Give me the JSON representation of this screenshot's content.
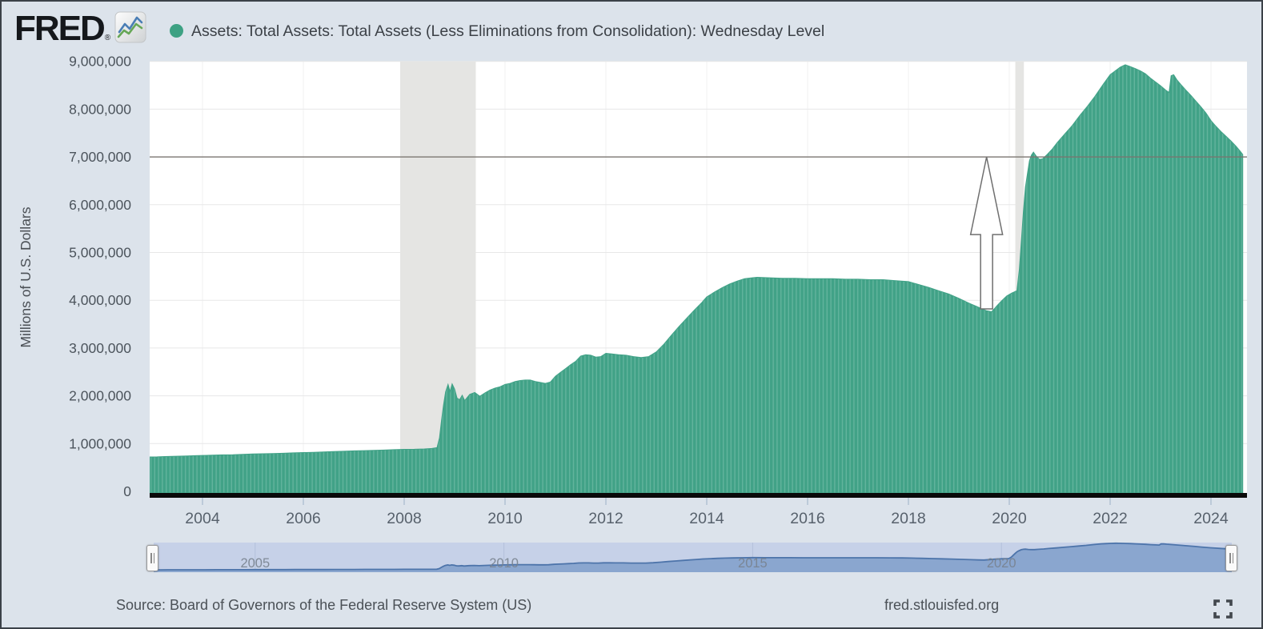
{
  "header": {
    "logo_text": "FRED",
    "logo_registered": "®",
    "legend_dot_color": "#3da183",
    "series_title": "Assets: Total Assets: Total Assets (Less Eliminations from Consolidation): Wednesday Level"
  },
  "icons": {
    "fred_logo_chart": "sparkline-chart",
    "legend_dot": "filled-circle",
    "slider_handles": "grip-bars",
    "fullscreen": "expand-corners"
  },
  "footer": {
    "source": "Source: Board of Governors of the Federal Reserve System (US)",
    "site": "fred.stlouisfed.org"
  },
  "slider": {
    "labels": [
      {
        "year": 2005,
        "label": "2005"
      },
      {
        "year": 2010,
        "label": "2010"
      },
      {
        "year": 2015,
        "label": "2015"
      },
      {
        "year": 2020,
        "label": "2020"
      }
    ]
  },
  "chart_data": {
    "type": "area",
    "title": "Assets: Total Assets: Total Assets (Less Eliminations from Consolidation): Wednesday Level",
    "xlabel": "",
    "ylabel": "Millions of U.S. Dollars",
    "legend_position": "top",
    "grid": true,
    "xlim": [
      2002.96,
      2024.63
    ],
    "ylim": [
      0,
      9000000
    ],
    "y_ticks": [
      {
        "value": 0,
        "label": "0"
      },
      {
        "value": 1000000,
        "label": "1,000,000"
      },
      {
        "value": 2000000,
        "label": "2,000,000"
      },
      {
        "value": 3000000,
        "label": "3,000,000"
      },
      {
        "value": 4000000,
        "label": "4,000,000"
      },
      {
        "value": 5000000,
        "label": "5,000,000"
      },
      {
        "value": 6000000,
        "label": "6,000,000"
      },
      {
        "value": 7000000,
        "label": "7,000,000"
      },
      {
        "value": 8000000,
        "label": "8,000,000"
      },
      {
        "value": 9000000,
        "label": "9,000,000"
      }
    ],
    "x_ticks": [
      {
        "year": 2004,
        "label": "2004"
      },
      {
        "year": 2006,
        "label": "2006"
      },
      {
        "year": 2008,
        "label": "2008"
      },
      {
        "year": 2010,
        "label": "2010"
      },
      {
        "year": 2012,
        "label": "2012"
      },
      {
        "year": 2014,
        "label": "2014"
      },
      {
        "year": 2016,
        "label": "2016"
      },
      {
        "year": 2018,
        "label": "2018"
      },
      {
        "year": 2020,
        "label": "2020"
      },
      {
        "year": 2022,
        "label": "2022"
      },
      {
        "year": 2024,
        "label": "2024"
      }
    ],
    "recession_bands": [
      {
        "start": 2007.92,
        "end": 2009.42
      },
      {
        "start": 2020.12,
        "end": 2020.29
      }
    ],
    "reference_line": {
      "value": 7000000
    },
    "annotation_arrow": {
      "year": 2019.55,
      "from_value": 3820000,
      "to_value": 7000000
    },
    "colors": {
      "widget_background": "#dce3eb",
      "plot_background": "#ffffff",
      "series_fill": "#41a287",
      "series_stripe": "#62b49d",
      "recession_band": "#e5e5e3",
      "gridline": "#e7e7e8",
      "vertical_gridline": "#f0f0f1",
      "reference_line": "#7a7470",
      "arrow_outline": "#6f6f6f",
      "axis_line": "#0a0a0a",
      "tick_mark": "#b2c2d3",
      "axis_label": "#57616c",
      "slider_track": "#c6d1e8",
      "slider_fill": "#8aa6cf",
      "slider_line": "#4d74aa",
      "slider_label": "#78828e"
    },
    "points": [
      [
        2002.96,
        720000
      ],
      [
        2003.1,
        722000
      ],
      [
        2003.25,
        728000
      ],
      [
        2003.4,
        733000
      ],
      [
        2003.55,
        737000
      ],
      [
        2003.7,
        741000
      ],
      [
        2003.85,
        747000
      ],
      [
        2004.0,
        752000
      ],
      [
        2004.2,
        758000
      ],
      [
        2004.4,
        763000
      ],
      [
        2004.6,
        768000
      ],
      [
        2004.8,
        775000
      ],
      [
        2005.0,
        782000
      ],
      [
        2005.2,
        787000
      ],
      [
        2005.4,
        792000
      ],
      [
        2005.6,
        798000
      ],
      [
        2005.8,
        805000
      ],
      [
        2006.0,
        812000
      ],
      [
        2006.2,
        818000
      ],
      [
        2006.4,
        825000
      ],
      [
        2006.6,
        832000
      ],
      [
        2006.8,
        840000
      ],
      [
        2007.0,
        848000
      ],
      [
        2007.2,
        853000
      ],
      [
        2007.4,
        858000
      ],
      [
        2007.6,
        865000
      ],
      [
        2007.8,
        872000
      ],
      [
        2008.0,
        880000
      ],
      [
        2008.2,
        881000
      ],
      [
        2008.4,
        888000
      ],
      [
        2008.55,
        898000
      ],
      [
        2008.65,
        915000
      ],
      [
        2008.7,
        1120000
      ],
      [
        2008.74,
        1480000
      ],
      [
        2008.78,
        1800000
      ],
      [
        2008.82,
        2080000
      ],
      [
        2008.87,
        2240000
      ],
      [
        2008.91,
        2090000
      ],
      [
        2008.95,
        2250000
      ],
      [
        2009.0,
        2140000
      ],
      [
        2009.05,
        1950000
      ],
      [
        2009.1,
        1920000
      ],
      [
        2009.15,
        2010000
      ],
      [
        2009.2,
        1900000
      ],
      [
        2009.3,
        2030000
      ],
      [
        2009.4,
        2070000
      ],
      [
        2009.5,
        1990000
      ],
      [
        2009.6,
        2060000
      ],
      [
        2009.7,
        2120000
      ],
      [
        2009.8,
        2160000
      ],
      [
        2009.9,
        2190000
      ],
      [
        2010.0,
        2240000
      ],
      [
        2010.1,
        2260000
      ],
      [
        2010.2,
        2300000
      ],
      [
        2010.3,
        2320000
      ],
      [
        2010.4,
        2330000
      ],
      [
        2010.5,
        2330000
      ],
      [
        2010.6,
        2300000
      ],
      [
        2010.7,
        2280000
      ],
      [
        2010.8,
        2260000
      ],
      [
        2010.9,
        2290000
      ],
      [
        2011.0,
        2410000
      ],
      [
        2011.1,
        2490000
      ],
      [
        2011.2,
        2570000
      ],
      [
        2011.3,
        2650000
      ],
      [
        2011.4,
        2720000
      ],
      [
        2011.5,
        2830000
      ],
      [
        2011.6,
        2860000
      ],
      [
        2011.7,
        2850000
      ],
      [
        2011.8,
        2810000
      ],
      [
        2011.9,
        2820000
      ],
      [
        2012.0,
        2890000
      ],
      [
        2012.1,
        2880000
      ],
      [
        2012.25,
        2860000
      ],
      [
        2012.4,
        2850000
      ],
      [
        2012.55,
        2820000
      ],
      [
        2012.7,
        2800000
      ],
      [
        2012.85,
        2820000
      ],
      [
        2013.0,
        2920000
      ],
      [
        2013.15,
        3080000
      ],
      [
        2013.3,
        3270000
      ],
      [
        2013.45,
        3450000
      ],
      [
        2013.6,
        3620000
      ],
      [
        2013.75,
        3790000
      ],
      [
        2013.9,
        3950000
      ],
      [
        2014.0,
        4070000
      ],
      [
        2014.15,
        4170000
      ],
      [
        2014.3,
        4260000
      ],
      [
        2014.45,
        4340000
      ],
      [
        2014.6,
        4400000
      ],
      [
        2014.75,
        4450000
      ],
      [
        2014.9,
        4470000
      ],
      [
        2015.0,
        4480000
      ],
      [
        2015.25,
        4470000
      ],
      [
        2015.5,
        4460000
      ],
      [
        2015.75,
        4460000
      ],
      [
        2016.0,
        4450000
      ],
      [
        2016.25,
        4450000
      ],
      [
        2016.5,
        4450000
      ],
      [
        2016.75,
        4440000
      ],
      [
        2017.0,
        4440000
      ],
      [
        2017.25,
        4430000
      ],
      [
        2017.5,
        4430000
      ],
      [
        2017.75,
        4410000
      ],
      [
        2018.0,
        4390000
      ],
      [
        2018.2,
        4330000
      ],
      [
        2018.4,
        4270000
      ],
      [
        2018.6,
        4200000
      ],
      [
        2018.8,
        4130000
      ],
      [
        2019.0,
        4040000
      ],
      [
        2019.2,
        3940000
      ],
      [
        2019.4,
        3850000
      ],
      [
        2019.55,
        3780000
      ],
      [
        2019.65,
        3760000
      ],
      [
        2019.75,
        3880000
      ],
      [
        2019.85,
        3990000
      ],
      [
        2019.95,
        4090000
      ],
      [
        2020.05,
        4150000
      ],
      [
        2020.15,
        4200000
      ],
      [
        2020.2,
        4650000
      ],
      [
        2020.24,
        5250000
      ],
      [
        2020.28,
        5850000
      ],
      [
        2020.32,
        6370000
      ],
      [
        2020.36,
        6650000
      ],
      [
        2020.4,
        6920000
      ],
      [
        2020.44,
        7040000
      ],
      [
        2020.48,
        7100000
      ],
      [
        2020.54,
        7010000
      ],
      [
        2020.6,
        6950000
      ],
      [
        2020.66,
        6960000
      ],
      [
        2020.75,
        7050000
      ],
      [
        2020.85,
        7160000
      ],
      [
        2020.95,
        7300000
      ],
      [
        2021.1,
        7480000
      ],
      [
        2021.25,
        7660000
      ],
      [
        2021.4,
        7870000
      ],
      [
        2021.55,
        8060000
      ],
      [
        2021.7,
        8270000
      ],
      [
        2021.85,
        8500000
      ],
      [
        2022.0,
        8720000
      ],
      [
        2022.1,
        8800000
      ],
      [
        2022.2,
        8880000
      ],
      [
        2022.3,
        8930000
      ],
      [
        2022.38,
        8900000
      ],
      [
        2022.5,
        8850000
      ],
      [
        2022.6,
        8800000
      ],
      [
        2022.7,
        8740000
      ],
      [
        2022.8,
        8650000
      ],
      [
        2022.9,
        8570000
      ],
      [
        2023.0,
        8490000
      ],
      [
        2023.1,
        8400000
      ],
      [
        2023.17,
        8350000
      ],
      [
        2023.21,
        8700000
      ],
      [
        2023.26,
        8720000
      ],
      [
        2023.32,
        8620000
      ],
      [
        2023.4,
        8520000
      ],
      [
        2023.5,
        8400000
      ],
      [
        2023.6,
        8290000
      ],
      [
        2023.7,
        8170000
      ],
      [
        2023.8,
        8050000
      ],
      [
        2023.9,
        7920000
      ],
      [
        2024.0,
        7760000
      ],
      [
        2024.1,
        7640000
      ],
      [
        2024.2,
        7530000
      ],
      [
        2024.3,
        7430000
      ],
      [
        2024.4,
        7330000
      ],
      [
        2024.5,
        7220000
      ],
      [
        2024.58,
        7120000
      ],
      [
        2024.63,
        7050000
      ]
    ]
  }
}
